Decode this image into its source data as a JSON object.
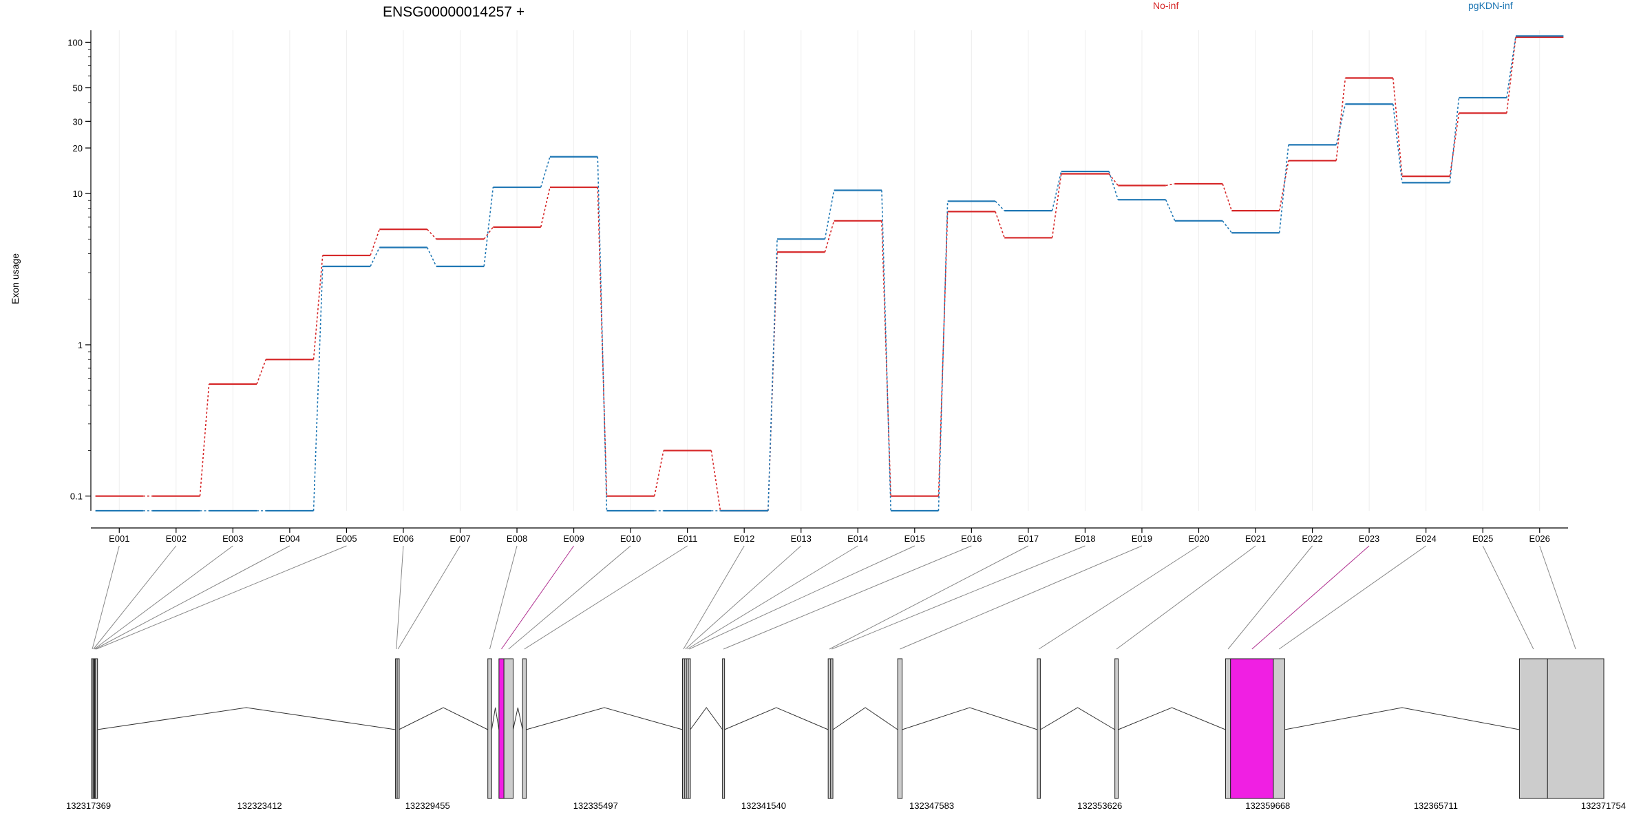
{
  "chart_data": {
    "type": "line",
    "title": "ENSG00000014257 +",
    "ylabel": "Exon usage",
    "y_scale": "log",
    "y_ticks": [
      0.1,
      1,
      10,
      20,
      30,
      50,
      100
    ],
    "ylim": [
      0.08,
      120
    ],
    "grid": "vertical light gridlines",
    "legend_position": "top-right",
    "categories": [
      "E001",
      "E002",
      "E003",
      "E004",
      "E005",
      "E006",
      "E007",
      "E008",
      "E009",
      "E010",
      "E011",
      "E012",
      "E013",
      "E014",
      "E015",
      "E016",
      "E017",
      "E018",
      "E019",
      "E020",
      "E021",
      "E022",
      "E023",
      "E024",
      "E025",
      "E026"
    ],
    "series": [
      {
        "name": "No-inf",
        "color": "#d62728",
        "values": [
          0.1,
          0.1,
          0.55,
          0.8,
          3.9,
          5.8,
          5.0,
          6.0,
          11.0,
          0.1,
          0.2,
          0.08,
          4.1,
          6.6,
          0.1,
          7.6,
          5.1,
          13.5,
          11.3,
          11.6,
          7.7,
          16.5,
          58,
          13.0,
          34,
          108
        ]
      },
      {
        "name": "pgKDN-inf",
        "color": "#1f77b4",
        "values": [
          0.08,
          0.08,
          0.08,
          0.08,
          3.3,
          4.4,
          3.3,
          11.0,
          17.5,
          0.08,
          0.08,
          0.08,
          5.0,
          10.5,
          0.08,
          8.9,
          7.7,
          14.0,
          9.1,
          6.6,
          5.5,
          21.0,
          39,
          11.8,
          43,
          110
        ]
      }
    ],
    "gene_model": {
      "coordinate_ticks": [
        "132317369",
        "132323412",
        "132329455",
        "132335497",
        "132341540",
        "132347583",
        "132353626",
        "132359668",
        "132365711",
        "132371754"
      ],
      "start": 132317369,
      "end": 132371754,
      "exons": [
        {
          "id": "E001",
          "start": 132317369,
          "end": 132317420,
          "highlight": false
        },
        {
          "id": "E002",
          "start": 132317420,
          "end": 132317450,
          "highlight": false
        },
        {
          "id": "E003",
          "start": 132317450,
          "end": 132317480,
          "highlight": false
        },
        {
          "id": "E004",
          "start": 132317480,
          "end": 132317510,
          "highlight": false
        },
        {
          "id": "E005",
          "start": 132317510,
          "end": 132317570,
          "highlight": false
        },
        {
          "id": "E006",
          "start": 132328300,
          "end": 132328360,
          "highlight": false
        },
        {
          "id": "E007",
          "start": 132328360,
          "end": 132328420,
          "highlight": false
        },
        {
          "id": "E008",
          "start": 132331620,
          "end": 132331760,
          "highlight": false
        },
        {
          "id": "E009",
          "start": 132332020,
          "end": 132332200,
          "highlight": true
        },
        {
          "id": "E010",
          "start": 132332200,
          "end": 132332530,
          "highlight": false
        },
        {
          "id": "E011",
          "start": 132332870,
          "end": 132333000,
          "highlight": false
        },
        {
          "id": "E012",
          "start": 132338620,
          "end": 132338690,
          "highlight": false
        },
        {
          "id": "E013",
          "start": 132338690,
          "end": 132338760,
          "highlight": false
        },
        {
          "id": "E014",
          "start": 132338760,
          "end": 132338830,
          "highlight": false
        },
        {
          "id": "E015",
          "start": 132338830,
          "end": 132338900,
          "highlight": false
        },
        {
          "id": "E016",
          "start": 132340060,
          "end": 132340130,
          "highlight": false
        },
        {
          "id": "E017",
          "start": 132343860,
          "end": 132343950,
          "highlight": false
        },
        {
          "id": "E018",
          "start": 132343950,
          "end": 132344030,
          "highlight": false
        },
        {
          "id": "E019",
          "start": 132346360,
          "end": 132346520,
          "highlight": false
        },
        {
          "id": "E020",
          "start": 132351380,
          "end": 132351490,
          "highlight": false
        },
        {
          "id": "E021",
          "start": 132354170,
          "end": 132354290,
          "highlight": false
        },
        {
          "id": "E022",
          "start": 132358150,
          "end": 132358330,
          "highlight": false
        },
        {
          "id": "E023",
          "start": 132358330,
          "end": 132359870,
          "highlight": true
        },
        {
          "id": "E024",
          "start": 132359870,
          "end": 132360280,
          "highlight": false
        },
        {
          "id": "E025",
          "start": 132368720,
          "end": 132369730,
          "highlight": false
        },
        {
          "id": "E026",
          "start": 132369730,
          "end": 132371754,
          "highlight": false
        }
      ],
      "exon_color": "#cccccc",
      "highlight_color": "#f01fe3",
      "highlighted_link_color": "#b03090"
    }
  }
}
